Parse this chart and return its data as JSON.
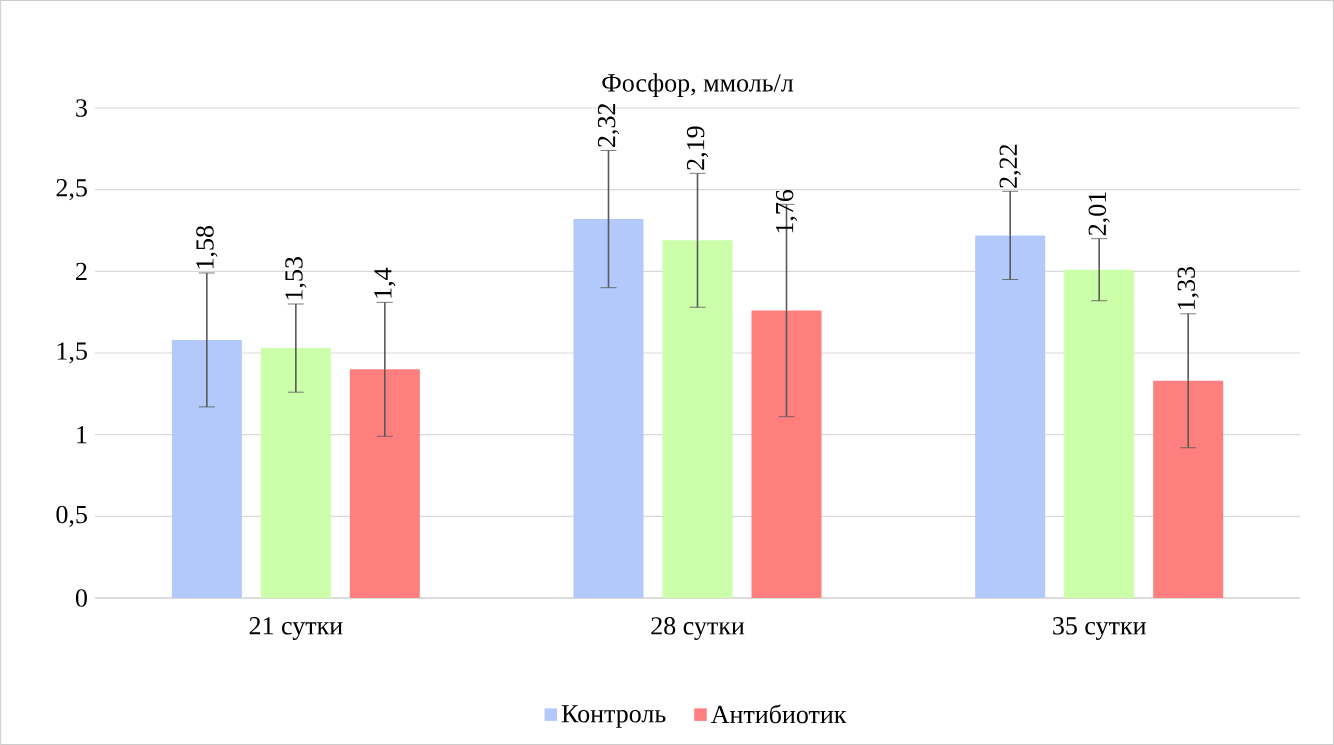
{
  "chart_data": {
    "type": "bar",
    "title": "Фосфор, ммоль/л",
    "categories": [
      "21 сутки",
      "28 сутки",
      "35 сутки"
    ],
    "series": [
      {
        "name": "Контроль",
        "color": "#b3c9fb",
        "values": [
          1.58,
          2.32,
          2.22
        ],
        "errors": [
          0.41,
          0.42,
          0.27
        ],
        "value_labels": [
          "1,58",
          "2,32",
          "2,22"
        ]
      },
      {
        "color": "#ccffaa",
        "values": [
          1.53,
          2.19,
          2.01
        ],
        "errors": [
          0.27,
          0.41,
          0.19
        ],
        "value_labels": [
          "1,53",
          "2,19",
          "2,01"
        ]
      },
      {
        "name": "Антибиотик",
        "color": "#ff7f7f",
        "values": [
          1.4,
          1.76,
          1.33
        ],
        "errors": [
          0.41,
          0.65,
          0.41
        ],
        "value_labels": [
          "1,4",
          "1,76",
          "1,33"
        ]
      }
    ],
    "ylim": [
      0,
      3
    ],
    "yticks": [
      0,
      {
        "value": 0.5,
        "label": "0,5"
      },
      1,
      {
        "value": 1.5,
        "label": "1,5"
      },
      2,
      {
        "value": 2.5,
        "label": "2,5"
      },
      3
    ],
    "grid": "y",
    "legend": "bottom"
  }
}
